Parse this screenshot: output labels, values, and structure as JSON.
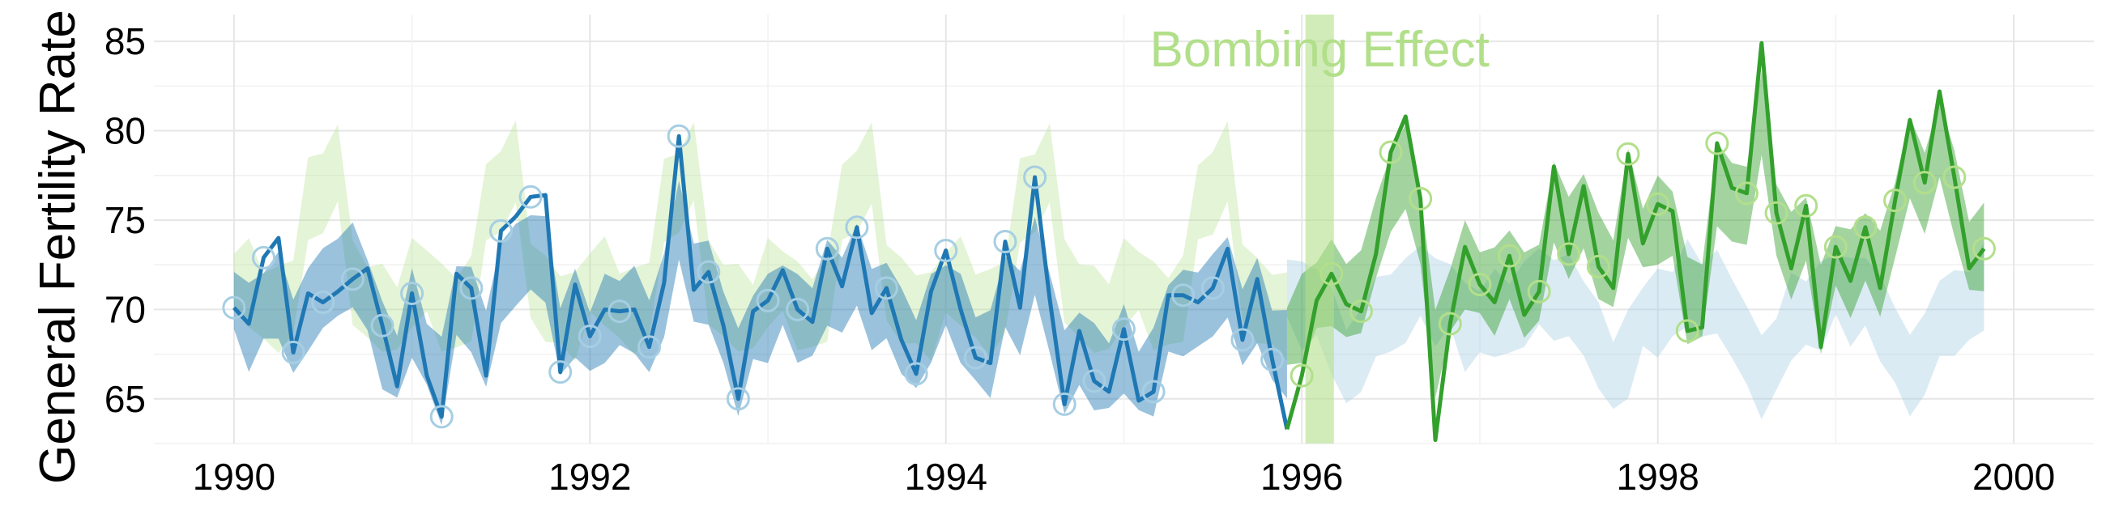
{
  "chart_data": {
    "type": "line",
    "title": "",
    "xlabel": "",
    "ylabel": "General Fertility Rate",
    "xlim": [
      1989.55,
      2000.45
    ],
    "ylim": [
      62.5,
      86.5
    ],
    "x_ticks": [
      1990,
      1992,
      1994,
      1996,
      1998,
      2000
    ],
    "x_tick_labels": [
      "1990",
      "1992",
      "1994",
      "1996",
      "1998",
      "2000"
    ],
    "y_ticks": [
      65,
      70,
      75,
      80,
      85
    ],
    "y_tick_labels": [
      "65",
      "70",
      "75",
      "80",
      "85"
    ],
    "grid": true,
    "annotation": {
      "text": "Bombing Effect",
      "x": 1996.1,
      "color": "#b2df8a"
    },
    "shade": {
      "x_range": [
        1996.02,
        1996.18
      ],
      "color": "#b2df8a"
    },
    "colors": {
      "pre_line": "#1f78b4",
      "pre_band": "#a6cee3",
      "post_line": "#33a02c",
      "post_band": "#b2df8a",
      "grid": "#e6e6e6"
    },
    "start_year": 1990.0,
    "step_years": 0.08333,
    "series": [
      {
        "role": "observed-pre",
        "values": [
          70.1,
          69.2,
          72.9,
          74.0,
          67.6,
          70.9,
          70.4,
          71.0,
          71.7,
          72.3,
          69.1,
          65.7,
          70.9,
          66.3,
          64.0,
          72.0,
          71.2,
          66.3,
          74.4,
          75.2,
          76.3,
          76.4,
          66.5,
          71.4,
          68.5,
          70.0,
          69.9,
          70.0,
          67.9,
          71.5,
          79.7,
          71.1,
          72.1,
          69.1,
          65.0,
          69.9,
          70.5,
          72.2,
          70.0,
          69.3,
          73.4,
          71.3,
          74.6,
          69.8,
          71.2,
          68.3,
          66.4,
          71.0,
          73.3,
          70.0,
          67.3,
          67.0,
          73.8,
          70.1,
          77.4,
          70.6,
          64.7,
          68.8,
          66.0,
          65.4,
          68.9,
          64.9,
          65.4,
          70.8,
          70.8,
          70.4,
          71.2,
          73.4,
          68.3,
          71.7,
          67.2,
          63.3
        ]
      },
      {
        "role": "observed-post",
        "values": [
          63.3,
          66.3,
          70.5,
          72.0,
          70.3,
          69.9,
          73.1,
          78.8,
          80.8,
          76.2,
          62.7,
          69.2,
          73.5,
          71.4,
          70.4,
          73.0,
          69.7,
          71.0,
          78.0,
          73.1,
          76.9,
          72.4,
          71.2,
          78.7,
          73.7,
          75.9,
          75.5,
          68.8,
          69.0,
          79.3,
          76.8,
          76.5,
          84.9,
          75.4,
          72.3,
          75.8,
          67.9,
          73.5,
          71.6,
          74.6,
          71.2,
          76.1,
          80.6,
          77.1,
          82.2,
          77.4,
          72.3,
          73.4
        ]
      },
      {
        "role": "counterfactual-post",
        "values": [
          71.2,
          70.2,
          70.4,
          68.8,
          66.8,
          67.7,
          69.6,
          69.8,
          70.5,
          71.6,
          70.4,
          70.8,
          69.0,
          69.3,
          69.8,
          69.5,
          70.3,
          71.3,
          70.5,
          70.8,
          69.5,
          68.0,
          66.3,
          67.5,
          69.6,
          69.8,
          70.3,
          71.5,
          70.5,
          71.0,
          69.5,
          68.0,
          66.2,
          67.5,
          69.6,
          69.8,
          70.2,
          71.4,
          70.4,
          71.0,
          69.5,
          68.0,
          66.3,
          67.5,
          69.5,
          69.8,
          70.2,
          71.3
        ]
      },
      {
        "role": "counterfactual-pre",
        "values": [
          71.5,
          71.5,
          70.2,
          70.0,
          70.7,
          76.2,
          76.5,
          78.2,
          71.5,
          70.4,
          70.1,
          69.5,
          71.5,
          71.6,
          70.1,
          69.8,
          70.6,
          76.0,
          76.6,
          78.3,
          71.6,
          70.6,
          70.0,
          69.6,
          71.5,
          71.6,
          70.2,
          69.9,
          70.6,
          76.1,
          76.5,
          78.3,
          71.5,
          70.5,
          70.1,
          69.6,
          71.5,
          71.6,
          70.2,
          69.8,
          70.6,
          76.0,
          76.6,
          78.2,
          71.5,
          70.5,
          70.0,
          69.6,
          71.5,
          71.6,
          70.2,
          69.8,
          70.7,
          76.1,
          76.5,
          78.2,
          71.6,
          70.5,
          70.0,
          69.6,
          71.5,
          71.6,
          70.2,
          69.9,
          70.6,
          76.0,
          76.5,
          78.3,
          71.5,
          70.5,
          70.0,
          69.6
        ]
      },
      {
        "role": "fitted-pre",
        "values": [
          70.5,
          69.0,
          70.2,
          70.8,
          68.5,
          70.0,
          71.2,
          71.8,
          72.5,
          70.8,
          68.0,
          66.8,
          69.8,
          67.5,
          66.0,
          70.5,
          70.0,
          67.8,
          71.5,
          72.5,
          73.2,
          72.8,
          68.2,
          69.8,
          68.2,
          69.5,
          69.8,
          70.0,
          68.5,
          70.8,
          75.0,
          71.5,
          71.5,
          69.0,
          66.5,
          69.0,
          69.5,
          70.8,
          69.5,
          69.3,
          71.5,
          70.8,
          72.5,
          70.0,
          70.5,
          68.8,
          67.5,
          69.5,
          70.8,
          69.5,
          67.8,
          67.5,
          71.0,
          69.8,
          73.0,
          69.8,
          66.5,
          67.8,
          66.8,
          66.3,
          67.8,
          66.0,
          66.5,
          69.5,
          69.8,
          70.0,
          70.8,
          71.8,
          69.0,
          70.5,
          68.0,
          67.5
        ]
      },
      {
        "role": "fitted-post",
        "values": [
          68.5,
          69.5,
          70.8,
          71.5,
          70.5,
          71.0,
          74.0,
          76.5,
          78.0,
          74.5,
          67.5,
          70.5,
          72.5,
          71.5,
          71.0,
          72.5,
          70.8,
          71.5,
          76.0,
          74.0,
          75.5,
          73.0,
          72.0,
          76.5,
          74.0,
          75.0,
          74.8,
          70.5,
          70.5,
          77.0,
          76.0,
          75.8,
          81.0,
          75.0,
          73.0,
          74.5,
          70.0,
          73.0,
          72.0,
          73.5,
          72.0,
          75.0,
          78.5,
          76.5,
          79.5,
          76.5,
          73.0,
          73.5
        ]
      }
    ]
  }
}
